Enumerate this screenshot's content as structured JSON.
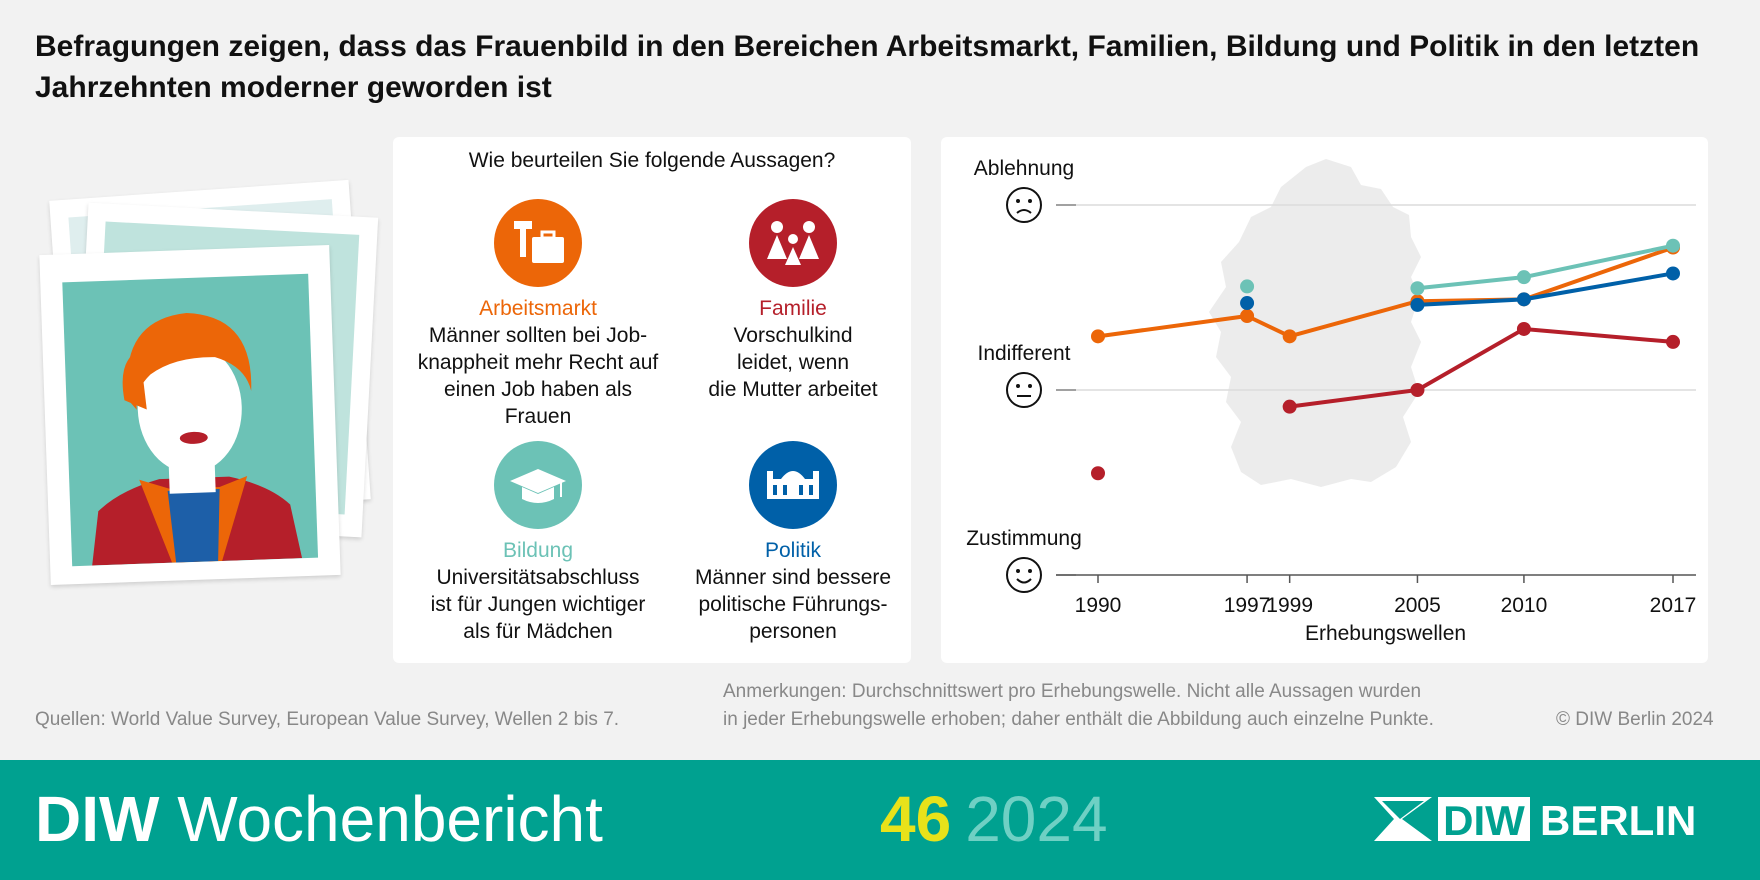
{
  "headline": "Befragungen zeigen, dass das Frauenbild in den Bereichen Arbeitsmarkt, Familien, Bildung und Politik in den letzten Jahrzehnten moderner geworden ist",
  "question": "Wie beurteilen Sie folgende Aussagen?",
  "items": [
    {
      "label": "Arbeitsmarkt",
      "desc": "Männer sollten bei Job-\nknappheit mehr Recht auf\neinen Job haben als Frauen",
      "color": "#ec6608",
      "icon": "hammer-briefcase-icon"
    },
    {
      "label": "Familie",
      "desc": "Vorschulkind\nleidet, wenn\ndie Mutter arbeitet",
      "color": "#b51f2a",
      "icon": "family-icon"
    },
    {
      "label": "Bildung",
      "desc": "Universitätsabschluss\nist für Jungen wichtiger\nals für Mädchen",
      "color": "#6cc2b6",
      "icon": "graduation-cap-icon"
    },
    {
      "label": "Politik",
      "desc": "Männer sind bessere\npolitische Führungs-\npersonen",
      "color": "#0060a8",
      "icon": "parliament-icon"
    }
  ],
  "chart_data": {
    "type": "line",
    "x": [
      "1990",
      "1997",
      "1999",
      "2005",
      "2010",
      "2017"
    ],
    "xlabel": "Erhebungswellen",
    "y_axis_labels": [
      "Ablehnung",
      "Indifferent",
      "Zustimmung"
    ],
    "ylim": [
      0,
      2
    ],
    "grid": true,
    "series": [
      {
        "name": "Arbeitsmarkt",
        "color": "#ec6608",
        "values": [
          1.29,
          1.4,
          1.29,
          1.48,
          1.49,
          1.77
        ]
      },
      {
        "name": "Familie",
        "color": "#b51f2a",
        "values": [
          0.55,
          null,
          0.91,
          1.0,
          1.33,
          1.26
        ]
      },
      {
        "name": "Bildung",
        "color": "#6cc2b6",
        "values": [
          null,
          1.56,
          null,
          1.55,
          1.61,
          1.78
        ]
      },
      {
        "name": "Politik",
        "color": "#0060a8",
        "values": [
          null,
          1.47,
          null,
          1.46,
          1.49,
          1.63
        ]
      }
    ]
  },
  "sources": "Quellen: World Value Survey, European Value Survey, Wellen 2 bis 7.",
  "notes_line1": "Anmerkungen: Durchschnittswert pro Erhebungswelle. Nicht alle Aussagen wurden",
  "notes_line2": "in jeder Erhebungswelle erhoben; daher enthält die Abbildung auch einzelne Punkte.",
  "copyright": "© DIW Berlin 2024",
  "brand_bold": "DIW",
  "brand_rest": " Wochenbericht",
  "issue_number": "46",
  "issue_year": "2024",
  "logo_diw": "DIW",
  "logo_berlin": "BERLIN"
}
